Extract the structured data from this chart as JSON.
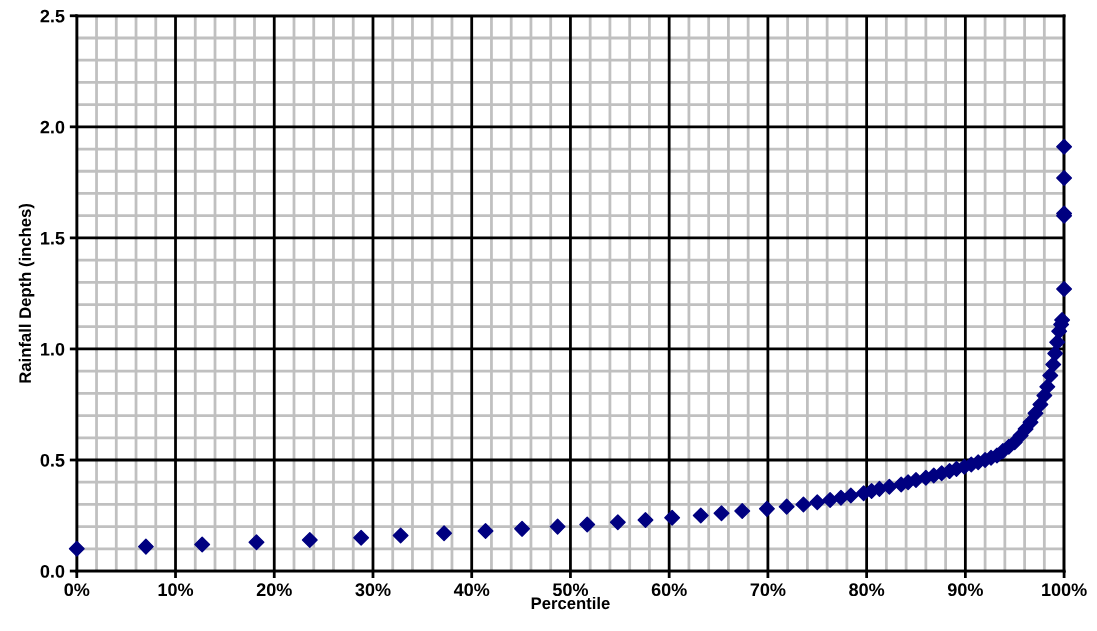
{
  "chart_data": {
    "type": "scatter",
    "xlabel": "Percentile",
    "ylabel": "Rainfall Depth (inches)",
    "x": [
      0,
      7,
      12.7,
      18.2,
      23.6,
      28.8,
      32.8,
      37.2,
      41.4,
      45.1,
      48.7,
      51.7,
      54.8,
      57.6,
      60.3,
      63.2,
      65.3,
      67.4,
      69.9,
      71.9,
      73.6,
      75,
      76.3,
      77.4,
      78.4,
      79.7,
      80.5,
      81.3,
      82.3,
      83.5,
      84.2,
      85,
      86,
      86.8,
      87.6,
      88.4,
      89.1,
      89.9,
      90.6,
      91.3,
      92,
      92.6,
      93.2,
      93.8,
      94.4,
      95,
      95.6,
      96.1,
      96.6,
      97.1,
      97.6,
      98,
      98.3,
      98.6,
      98.9,
      99.1,
      99.3,
      99.5,
      99.7,
      99.8,
      100,
      100,
      100,
      100,
      100
    ],
    "series": [
      {
        "color": "#000080",
        "values": [
          0.1,
          0.11,
          0.12,
          0.13,
          0.14,
          0.15,
          0.16,
          0.17,
          0.18,
          0.19,
          0.2,
          0.21,
          0.22,
          0.23,
          0.24,
          0.25,
          0.26,
          0.27,
          0.28,
          0.29,
          0.3,
          0.31,
          0.32,
          0.33,
          0.34,
          0.35,
          0.36,
          0.37,
          0.38,
          0.39,
          0.4,
          0.41,
          0.42,
          0.43,
          0.44,
          0.45,
          0.46,
          0.47,
          0.48,
          0.49,
          0.5,
          0.51,
          0.52,
          0.54,
          0.56,
          0.58,
          0.61,
          0.64,
          0.67,
          0.71,
          0.75,
          0.79,
          0.83,
          0.88,
          0.93,
          0.98,
          1.03,
          1.08,
          1.11,
          1.13,
          1.27,
          1.6,
          1.61,
          1.77,
          1.91
        ]
      }
    ],
    "xlim": [
      0,
      100
    ],
    "ylim": [
      0,
      2.5
    ],
    "xticks": [
      {
        "value": 0,
        "label": "0%"
      },
      {
        "value": 2,
        "label": null
      },
      {
        "value": 4,
        "label": null
      },
      {
        "value": 6,
        "label": null
      },
      {
        "value": 8,
        "label": null
      },
      {
        "value": 10,
        "label": "10%"
      },
      {
        "value": 12,
        "label": null
      },
      {
        "value": 14,
        "label": null
      },
      {
        "value": 16,
        "label": null
      },
      {
        "value": 18,
        "label": null
      },
      {
        "value": 20,
        "label": "20%"
      },
      {
        "value": 22,
        "label": null
      },
      {
        "value": 24,
        "label": null
      },
      {
        "value": 26,
        "label": null
      },
      {
        "value": 28,
        "label": null
      },
      {
        "value": 30,
        "label": "30%"
      },
      {
        "value": 32,
        "label": null
      },
      {
        "value": 34,
        "label": null
      },
      {
        "value": 36,
        "label": null
      },
      {
        "value": 38,
        "label": null
      },
      {
        "value": 40,
        "label": "40%"
      },
      {
        "value": 42,
        "label": null
      },
      {
        "value": 44,
        "label": null
      },
      {
        "value": 46,
        "label": null
      },
      {
        "value": 48,
        "label": null
      },
      {
        "value": 50,
        "label": "50%"
      },
      {
        "value": 52,
        "label": null
      },
      {
        "value": 54,
        "label": null
      },
      {
        "value": 56,
        "label": null
      },
      {
        "value": 58,
        "label": null
      },
      {
        "value": 60,
        "label": "60%"
      },
      {
        "value": 62,
        "label": null
      },
      {
        "value": 64,
        "label": null
      },
      {
        "value": 66,
        "label": null
      },
      {
        "value": 68,
        "label": null
      },
      {
        "value": 70,
        "label": "70%"
      },
      {
        "value": 72,
        "label": null
      },
      {
        "value": 74,
        "label": null
      },
      {
        "value": 76,
        "label": null
      },
      {
        "value": 78,
        "label": null
      },
      {
        "value": 80,
        "label": "80%"
      },
      {
        "value": 82,
        "label": null
      },
      {
        "value": 84,
        "label": null
      },
      {
        "value": 86,
        "label": null
      },
      {
        "value": 88,
        "label": null
      },
      {
        "value": 90,
        "label": "90%"
      },
      {
        "value": 92,
        "label": null
      },
      {
        "value": 94,
        "label": null
      },
      {
        "value": 96,
        "label": null
      },
      {
        "value": 98,
        "label": null
      },
      {
        "value": 100,
        "label": "100%"
      }
    ],
    "yticks": [
      {
        "value": 0,
        "label": "0.0"
      },
      {
        "value": 0.1,
        "label": null
      },
      {
        "value": 0.2,
        "label": null
      },
      {
        "value": 0.3,
        "label": null
      },
      {
        "value": 0.4,
        "label": null
      },
      {
        "value": 0.5,
        "label": "0.5"
      },
      {
        "value": 0.6,
        "label": null
      },
      {
        "value": 0.7,
        "label": null
      },
      {
        "value": 0.8,
        "label": null
      },
      {
        "value": 0.9,
        "label": null
      },
      {
        "value": 1.0,
        "label": "1.0"
      },
      {
        "value": 1.1,
        "label": null
      },
      {
        "value": 1.2,
        "label": null
      },
      {
        "value": 1.3,
        "label": null
      },
      {
        "value": 1.4,
        "label": null
      },
      {
        "value": 1.5,
        "label": "1.5"
      },
      {
        "value": 1.6,
        "label": null
      },
      {
        "value": 1.7,
        "label": null
      },
      {
        "value": 1.8,
        "label": null
      },
      {
        "value": 1.9,
        "label": null
      },
      {
        "value": 2.0,
        "label": "2.0"
      },
      {
        "value": 2.1,
        "label": null
      },
      {
        "value": 2.2,
        "label": null
      },
      {
        "value": 2.3,
        "label": null
      },
      {
        "value": 2.4,
        "label": null
      },
      {
        "value": 2.5,
        "label": "2.5"
      }
    ],
    "grid": true,
    "marker": "diamond"
  }
}
